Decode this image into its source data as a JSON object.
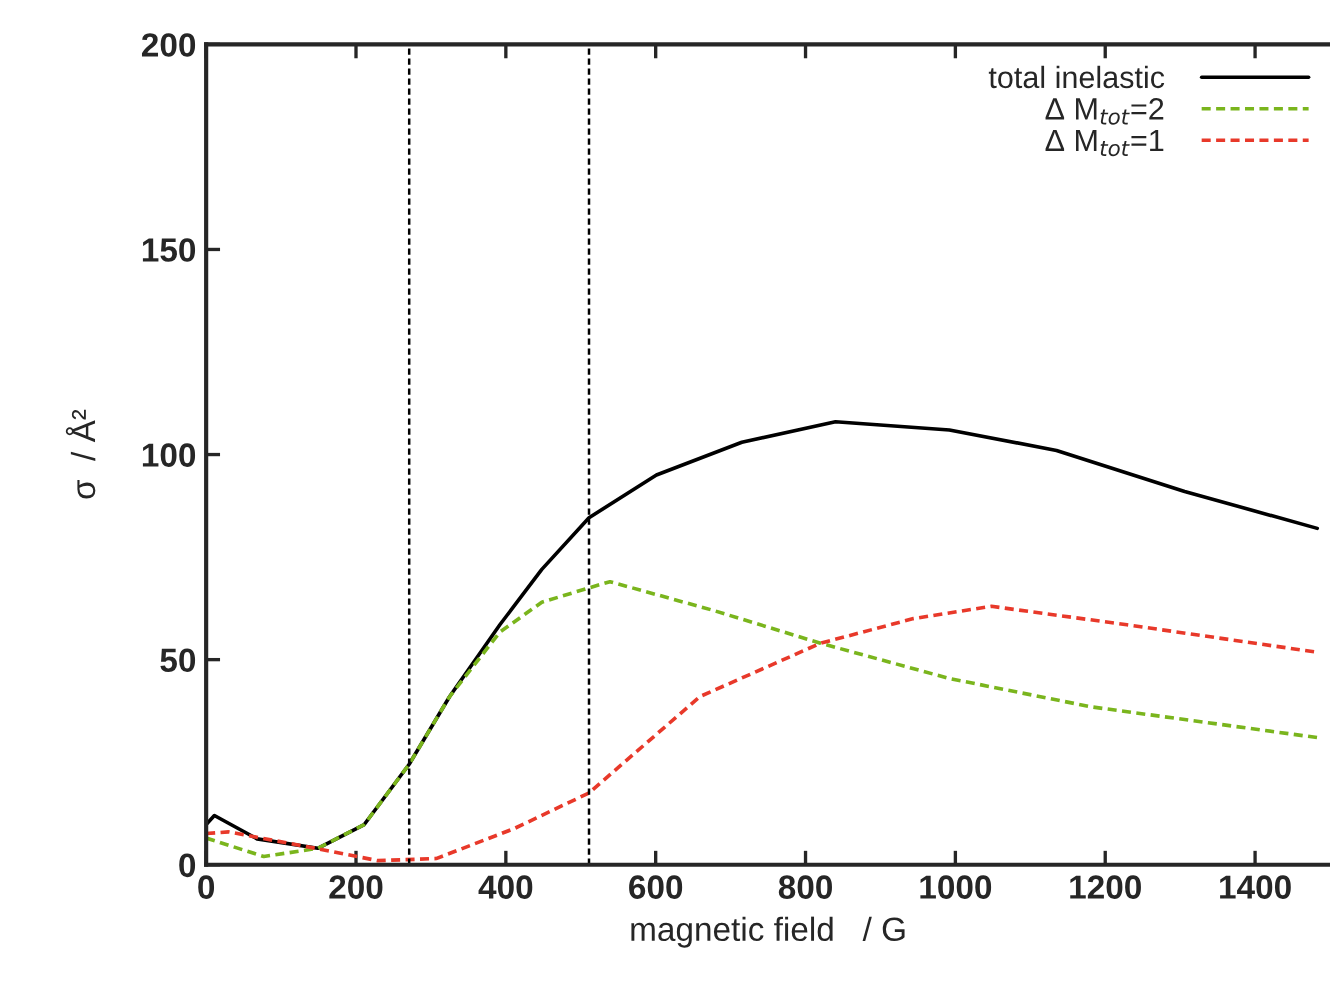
{
  "chart_data": {
    "type": "line",
    "xlabel": "magnetic field   / G",
    "ylabel": "σ  / Å²",
    "xlim": [
      0,
      1500
    ],
    "xticks": [
      0,
      200,
      400,
      600,
      800,
      1000,
      1200,
      1400
    ],
    "ylim": [
      0,
      200
    ],
    "yticks": [
      0,
      50,
      100,
      150,
      200
    ],
    "grid": false,
    "legend": "top right",
    "marker": "none",
    "ref_lines": [
      {
        "axis": "x",
        "value": 271,
        "color": "#000000",
        "line_style": "dashed"
      },
      {
        "axis": "x",
        "value": 511,
        "color": "#000000",
        "line_style": "dashed"
      }
    ],
    "series": [
      {
        "name": "total inelastic",
        "color": "#000000",
        "line_style": "solid",
        "x": [
          0,
          11,
          68,
          149,
          211,
          271,
          325,
          392,
          448,
          511,
          601,
          715,
          840,
          992,
          1135,
          1306,
          1483
        ],
        "values": [
          9.8,
          12,
          6.3,
          4,
          9.8,
          24.5,
          41,
          58.5,
          72,
          84.6,
          95,
          103,
          108,
          106,
          101,
          91,
          82
        ]
      },
      {
        "name": "Δ M$_{tot}$=2",
        "color": "#7ab51d",
        "line_style": "dashed",
        "x": [
          0,
          77,
          149,
          211,
          271,
          325,
          392,
          448,
          511,
          539,
          677,
          820,
          992,
          1181,
          1483
        ],
        "values": [
          6.5,
          2,
          4,
          9.8,
          24.5,
          41,
          56.7,
          64,
          67.5,
          69,
          62,
          54,
          45.4,
          38.5,
          31
        ]
      },
      {
        "name": "Δ M$_{tot}$=1",
        "color": "#e8392a",
        "line_style": "dashed",
        "x": [
          0,
          30,
          149,
          229,
          307,
          411,
          511,
          659,
          820,
          944,
          1048,
          1229,
          1483
        ],
        "values": [
          7.6,
          8,
          3.9,
          1,
          1.5,
          8.8,
          17.5,
          41,
          54,
          60,
          63,
          58.5,
          51.8
        ]
      }
    ]
  }
}
